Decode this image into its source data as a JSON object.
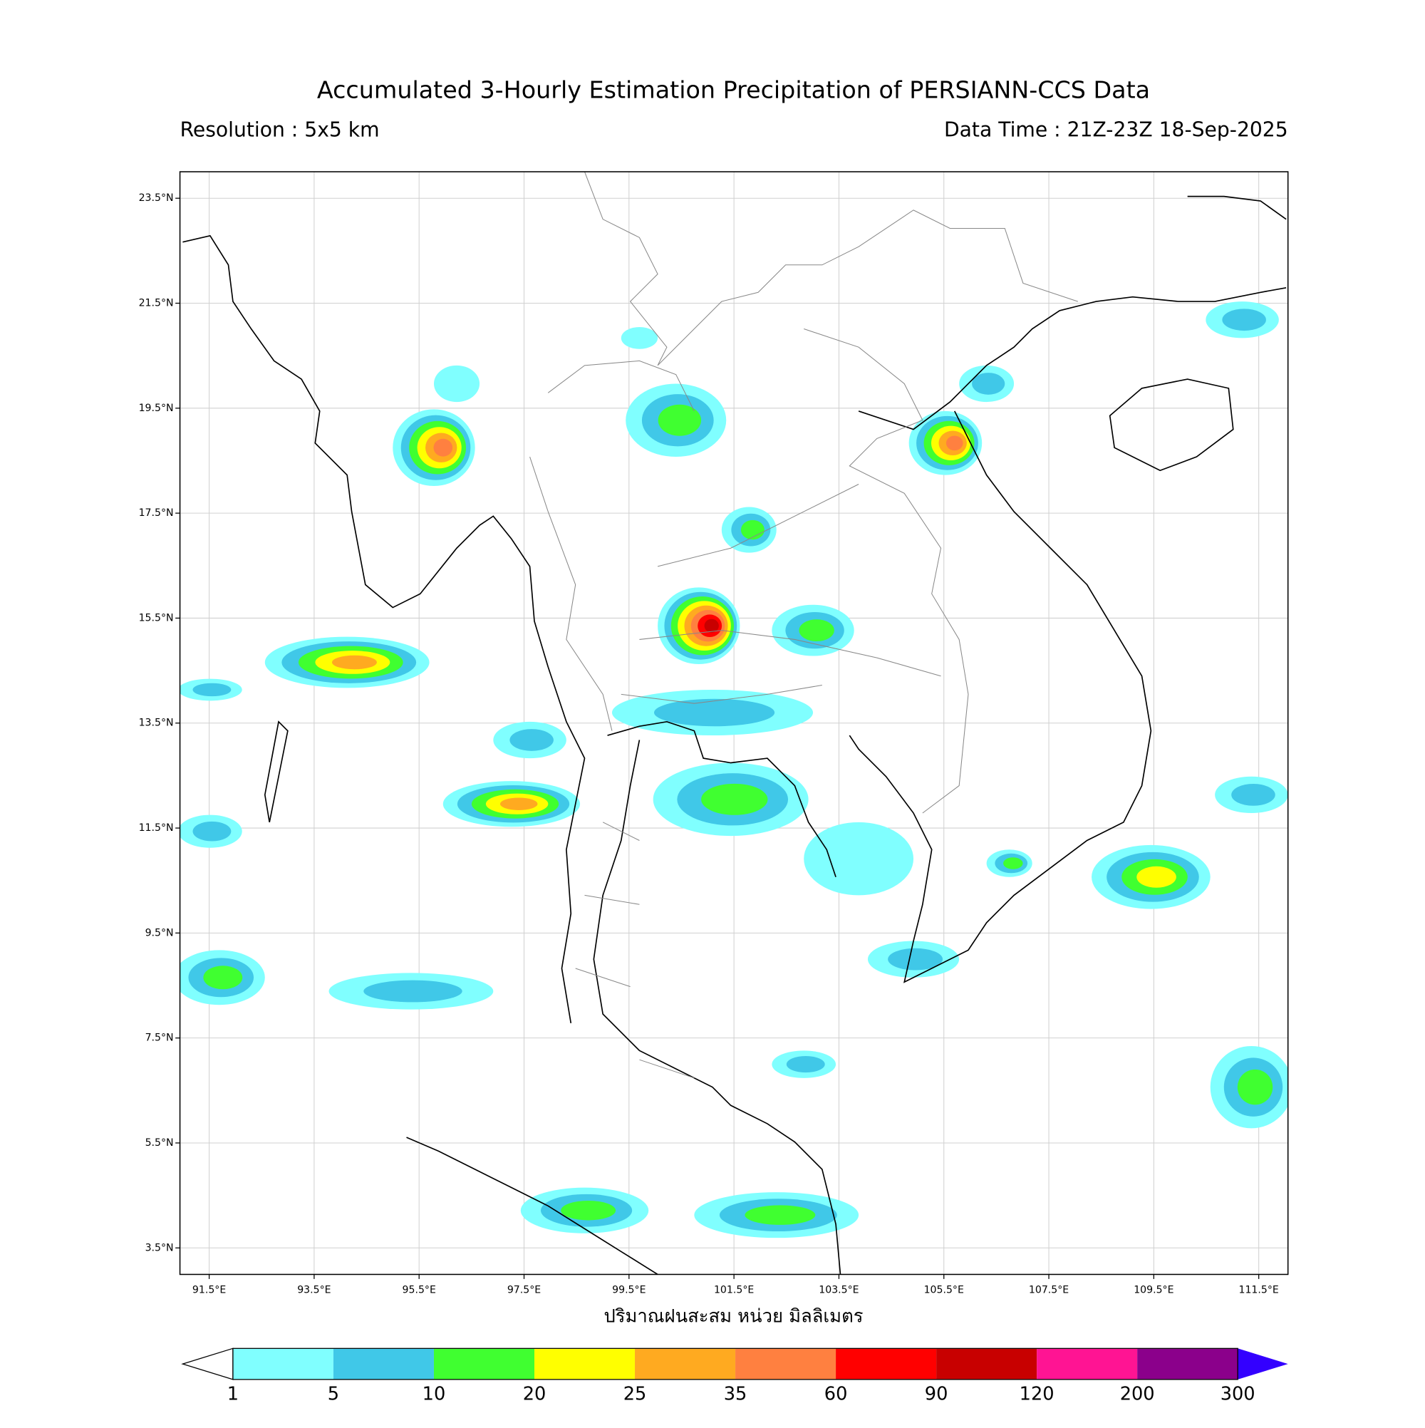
{
  "title": "Accumulated 3-Hourly Estimation Precipitation of PERSIANN-CCS Data",
  "resolution": "Resolution : 5x5 km",
  "data_time": "Data Time : 21Z-23Z 18-Sep-2025",
  "map": {
    "lat_ticks": [
      "23.5°N",
      "21.5°N",
      "19.5°N",
      "17.5°N",
      "15.5°N",
      "13.5°N",
      "11.5°N",
      "9.5°N",
      "7.5°N",
      "5.5°N",
      "3.5°N"
    ],
    "lon_ticks": [
      "91.5°E",
      "93.5°E",
      "95.5°E",
      "97.5°E",
      "99.5°E",
      "101.5°E",
      "103.5°E",
      "105.5°E",
      "107.5°E",
      "109.5°E",
      "111.5°E"
    ],
    "xlabel": "ปริมาณฝนสะสม หน่วย มิลลิเมตร"
  },
  "colorbar": {
    "levels": [
      1,
      5,
      10,
      20,
      25,
      35,
      60,
      90,
      120,
      200,
      300
    ],
    "colors": [
      "#80ffff",
      "#40c8e8",
      "#40ff30",
      "#ffff00",
      "#ffaa20",
      "#ff8040",
      "#ff0000",
      "#c80000",
      "#ff1493",
      "#8b008b"
    ],
    "under_color": "#ffffff",
    "over_color": "#3300ff"
  }
}
